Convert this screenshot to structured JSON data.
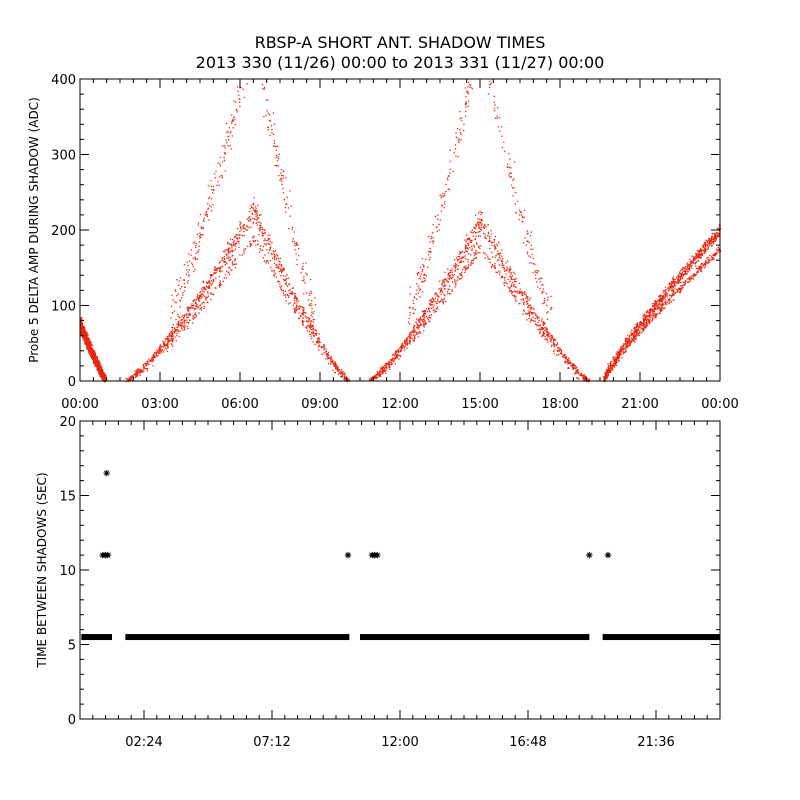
{
  "colors": {
    "amp_points": "#e8260f",
    "shadow_points": "#000000",
    "axes": "#000000"
  },
  "chart_data": [
    {
      "type": "scatter",
      "title": "RBSP-A SHORT ANT. SHADOW TIMES",
      "subtitle": "2013 330 (11/26) 00:00 to 2013 331 (11/27) 00:00",
      "xlabel": "",
      "ylabel": "Probe 5 DELTA AMP DURING SHADOW (ADC)",
      "xlim": [
        0,
        24
      ],
      "ylim": [
        0,
        400
      ],
      "x_ticks": [
        "00:00",
        "03:00",
        "06:00",
        "09:00",
        "12:00",
        "15:00",
        "18:00",
        "21:00",
        "00:00"
      ],
      "x_tick_values": [
        0,
        3,
        6,
        9,
        12,
        15,
        18,
        21,
        24
      ],
      "y_ticks": [
        "0",
        "100",
        "200",
        "300",
        "400"
      ],
      "y_tick_values": [
        0,
        100,
        200,
        300,
        400
      ],
      "grid": false,
      "marker": "dot",
      "arches": [
        {
          "start": 0.0,
          "end": 0.95,
          "amp_start": 80,
          "amp_end": 0,
          "lower_peak": 80,
          "upper_peak": 80,
          "note": "decaying tail of previous orbit"
        },
        {
          "start": 1.7,
          "end": 10.1,
          "peak": 6.5,
          "lower_peak": 225,
          "upper_peak": 400
        },
        {
          "start": 10.8,
          "end": 19.1,
          "peak": 15.0,
          "lower_peak": 210,
          "upper_peak": 400
        },
        {
          "start": 19.6,
          "end": 24.0,
          "amp_start": 0,
          "amp_end": 200,
          "lower_peak": 170,
          "upper_peak": 210,
          "note": "rising start of next orbit"
        }
      ],
      "series": [
        {
          "name": "",
          "description_points": "dense dotted arches"
        }
      ]
    },
    {
      "type": "scatter",
      "title": "",
      "xlabel": "",
      "ylabel": "TIME BETWEEN SHADOWS (SEC)",
      "xlim": [
        0,
        24
      ],
      "ylim": [
        0,
        20
      ],
      "x_ticks": [
        "02:24",
        "07:12",
        "12:00",
        "16:48",
        "21:36"
      ],
      "x_tick_values": [
        2.4,
        7.2,
        12.0,
        16.8,
        21.6
      ],
      "y_ticks": [
        "0",
        "5",
        "10",
        "15",
        "20"
      ],
      "y_tick_values": [
        0,
        5,
        10,
        15,
        20
      ],
      "grid": false,
      "marker": "asterisk",
      "baseline": {
        "y": 5.5,
        "segments": [
          [
            0.05,
            1.2
          ],
          [
            1.7,
            10.1
          ],
          [
            10.5,
            19.1
          ],
          [
            19.6,
            24.0
          ]
        ]
      },
      "points": [
        {
          "x": 0.85,
          "y": 11.0
        },
        {
          "x": 0.95,
          "y": 11.0
        },
        {
          "x": 1.05,
          "y": 11.0
        },
        {
          "x": 1.0,
          "y": 16.5
        },
        {
          "x": 10.05,
          "y": 11.0
        },
        {
          "x": 10.95,
          "y": 11.0
        },
        {
          "x": 11.05,
          "y": 11.0
        },
        {
          "x": 11.15,
          "y": 11.0
        },
        {
          "x": 19.1,
          "y": 11.0
        },
        {
          "x": 19.8,
          "y": 11.0
        }
      ]
    }
  ]
}
